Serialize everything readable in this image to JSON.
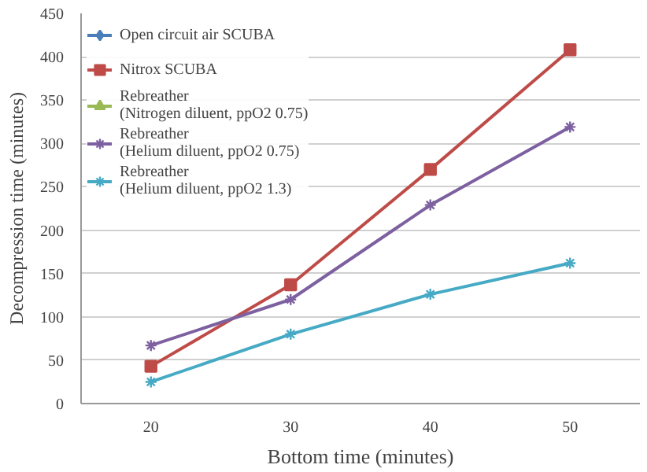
{
  "chart_data": {
    "type": "line",
    "xlabel": "Bottom time (minutes)",
    "ylabel": "Decompression time (minutes)",
    "categories": [
      "20",
      "30",
      "40",
      "50"
    ],
    "series": [
      {
        "name": "Open circuit air SCUBA",
        "color": "#4a7ebb",
        "marker": "diamond",
        "values": [
          null,
          null,
          null,
          null
        ]
      },
      {
        "name": "Nitrox SCUBA",
        "color": "#be4b48",
        "marker": "square",
        "values": [
          43,
          137,
          270,
          408
        ]
      },
      {
        "name": "Rebreather\n(Nitrogen diluent, ppO2 0.75)",
        "color": "#98b954",
        "marker": "triangle",
        "values": [
          null,
          null,
          null,
          null
        ]
      },
      {
        "name": "Rebreather\n(Helium diluent, ppO2 0.75)",
        "color": "#7d60a0",
        "marker": "cross",
        "values": [
          67,
          120,
          229,
          319
        ]
      },
      {
        "name": "Rebreather\n(Helium diluent, ppO2 1.3)",
        "color": "#46aac5",
        "marker": "cross",
        "values": [
          25,
          80,
          126,
          162
        ]
      }
    ],
    "ylim": [
      0,
      450
    ],
    "yticks": [
      0,
      50,
      100,
      150,
      200,
      250,
      300,
      350,
      400,
      450
    ],
    "grid": "y",
    "legend": "top left"
  }
}
